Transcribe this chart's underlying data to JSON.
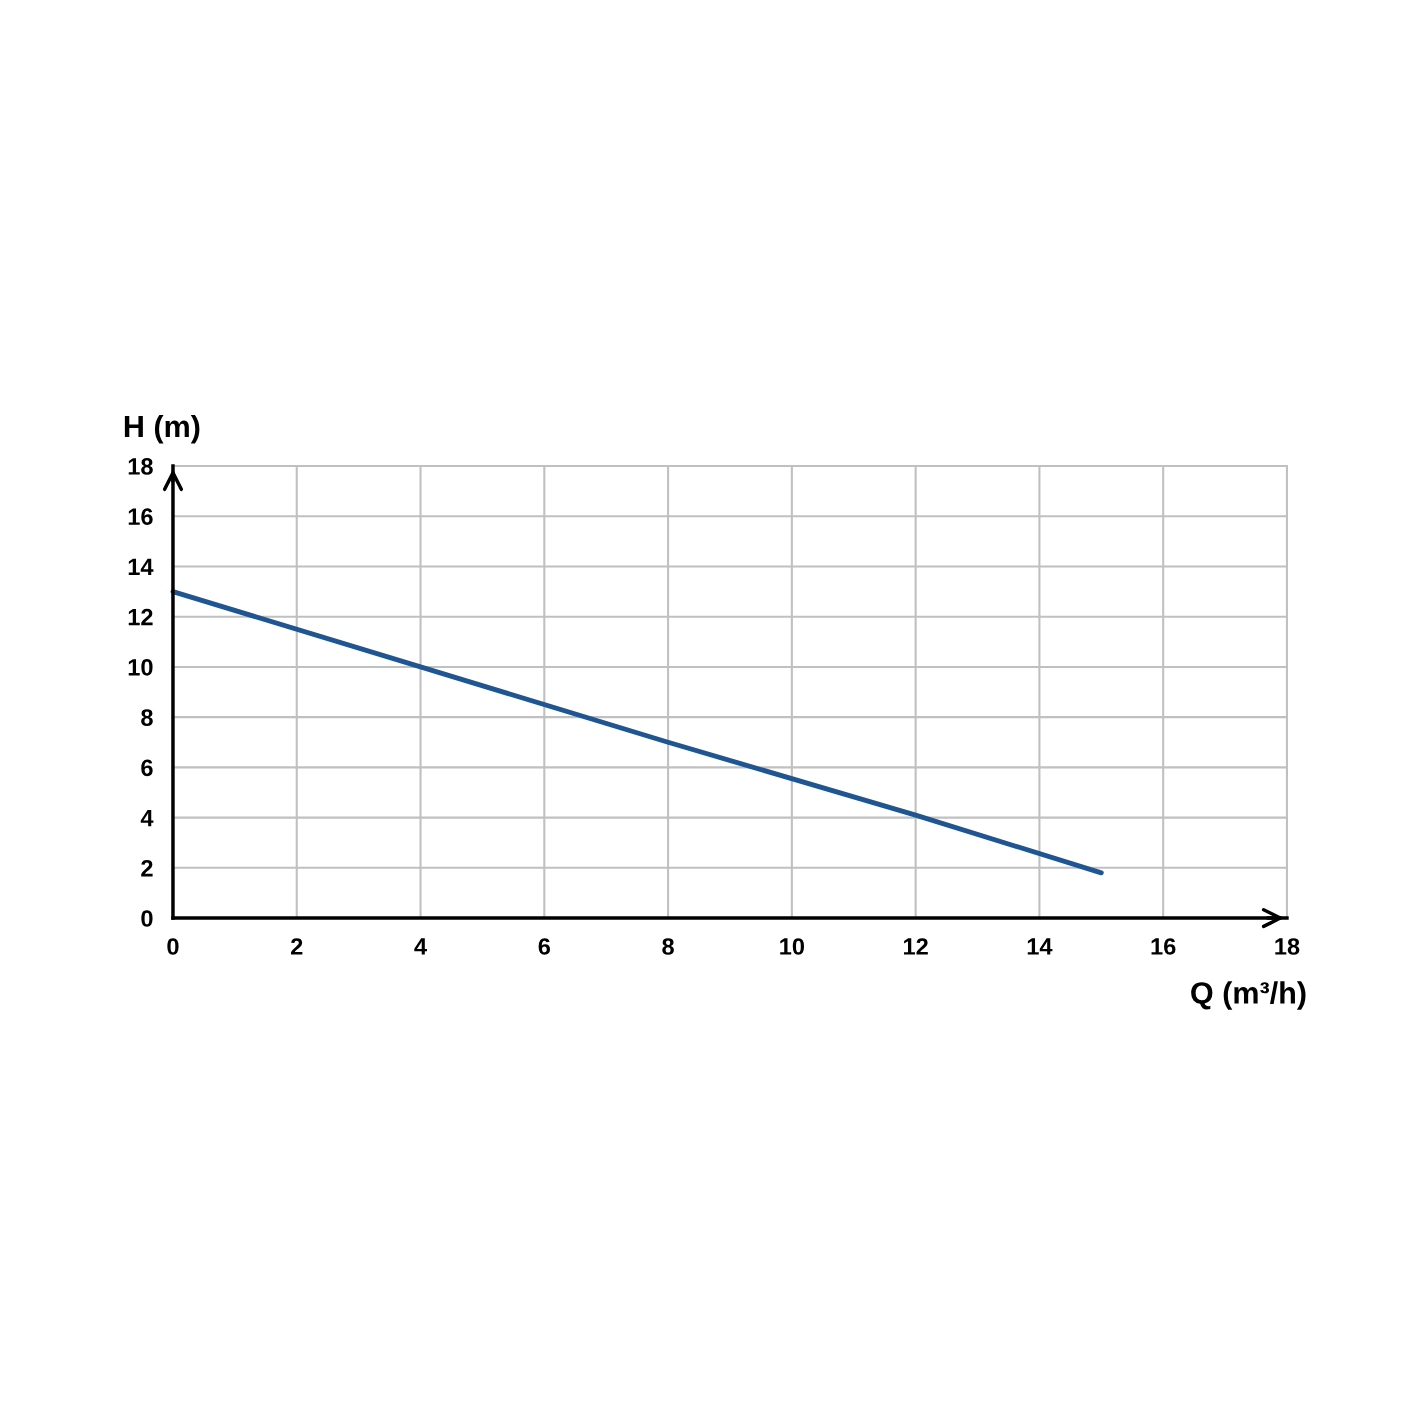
{
  "chart_data": {
    "type": "line",
    "xlabel": "Q (m³/h)",
    "ylabel": "H (m)",
    "x": [
      0,
      4,
      8,
      12,
      15
    ],
    "series": [
      {
        "color": "#1f5591",
        "values": [
          13,
          10,
          7,
          4.1,
          1.8
        ]
      }
    ],
    "xlim": [
      0,
      18
    ],
    "ylim": [
      0,
      18
    ],
    "xticks": [
      0,
      2,
      4,
      6,
      8,
      10,
      12,
      14,
      16,
      18
    ],
    "yticks": [
      0,
      2,
      4,
      6,
      8,
      10,
      12,
      14,
      16,
      18
    ],
    "grid": true,
    "marker": "none",
    "line_style": "solid"
  }
}
